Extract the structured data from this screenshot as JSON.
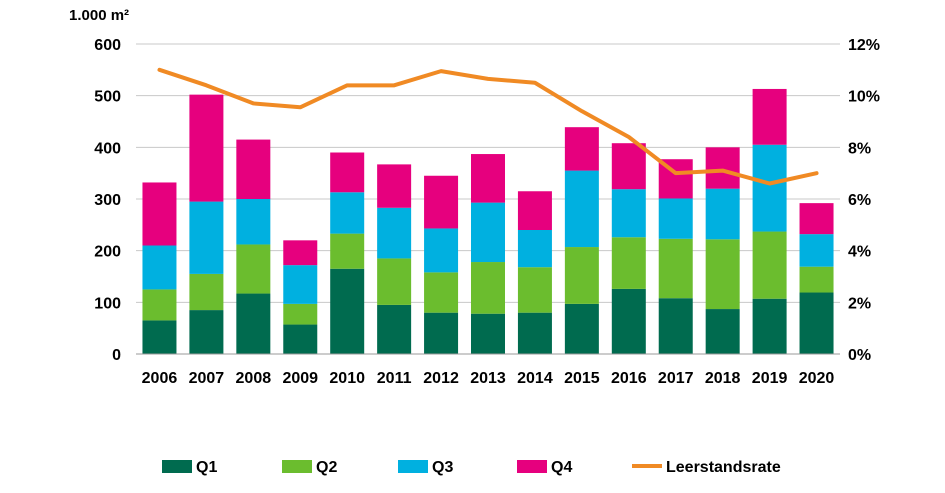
{
  "chart_data": {
    "type": "bar",
    "stacked": true,
    "y_unit_label": "1.000 m²",
    "categories": [
      "2006",
      "2007",
      "2008",
      "2009",
      "2010",
      "2011",
      "2012",
      "2013",
      "2014",
      "2015",
      "2016",
      "2017",
      "2018",
      "2019",
      "2020"
    ],
    "series": [
      {
        "name": "Q1",
        "color": "#006b4f",
        "values": [
          65,
          85,
          117,
          57,
          165,
          95,
          80,
          78,
          80,
          97,
          126,
          108,
          87,
          107,
          119
        ]
      },
      {
        "name": "Q2",
        "color": "#6bbd2e",
        "values": [
          60,
          70,
          95,
          40,
          68,
          90,
          78,
          100,
          88,
          110,
          100,
          115,
          135,
          130,
          50
        ]
      },
      {
        "name": "Q3",
        "color": "#00b0e0",
        "values": [
          85,
          140,
          88,
          75,
          80,
          98,
          85,
          115,
          72,
          148,
          93,
          78,
          98,
          168,
          63
        ]
      },
      {
        "name": "Q4",
        "color": "#e6007e",
        "values": [
          122,
          207,
          115,
          48,
          77,
          84,
          102,
          94,
          75,
          84,
          89,
          76,
          80,
          108,
          60
        ]
      }
    ],
    "line_series": {
      "name": "Leerstandsrate",
      "color": "#f08a24",
      "axis": "right",
      "values": [
        11.0,
        10.4,
        9.7,
        9.55,
        10.4,
        10.4,
        10.95,
        10.65,
        10.5,
        9.4,
        8.4,
        7.0,
        7.1,
        6.6,
        7.0
      ]
    },
    "y_left": {
      "min": 0,
      "max": 600,
      "ticks": [
        "0",
        "100",
        "200",
        "300",
        "400",
        "500",
        "600"
      ]
    },
    "y_right": {
      "min": 0,
      "max": 12,
      "ticks": [
        "0%",
        "2%",
        "4%",
        "6%",
        "8%",
        "10%",
        "12%"
      ]
    },
    "grid": true,
    "legend_position": "bottom"
  }
}
